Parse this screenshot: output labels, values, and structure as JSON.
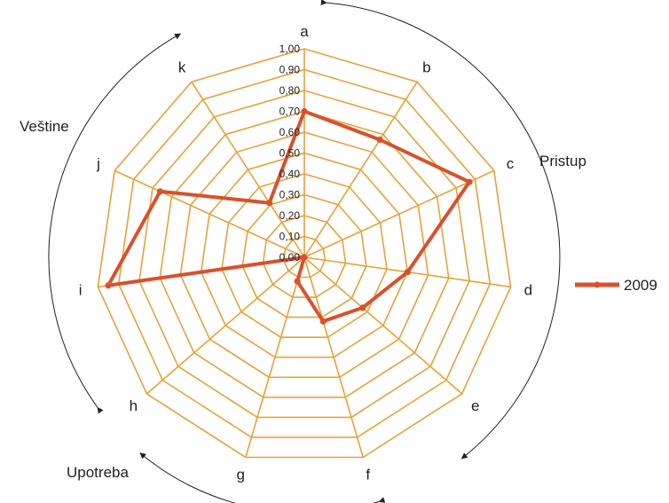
{
  "chart_data": {
    "type": "radar",
    "categories": [
      "a",
      "b",
      "c",
      "d",
      "e",
      "f",
      "g",
      "h",
      "i",
      "j",
      "k"
    ],
    "series": [
      {
        "name": "2009",
        "values": [
          0.7,
          0.67,
          0.87,
          0.5,
          0.37,
          0.32,
          0.12,
          0.0,
          0.95,
          0.76,
          0.31
        ]
      }
    ],
    "rlim": [
      0,
      1
    ],
    "ticks": [
      "0,00",
      "0,10",
      "0,20",
      "0,30",
      "0,40",
      "0,50",
      "0,60",
      "0,70",
      "0,80",
      "0,90",
      "1,00"
    ],
    "groups": [
      "Pristup",
      "Upotreba",
      "Veštine"
    ],
    "legend_position": "right",
    "grid": true,
    "colors": {
      "grid": "#e8a23a",
      "series": "#d9512c",
      "arrows": "#231f20"
    }
  }
}
